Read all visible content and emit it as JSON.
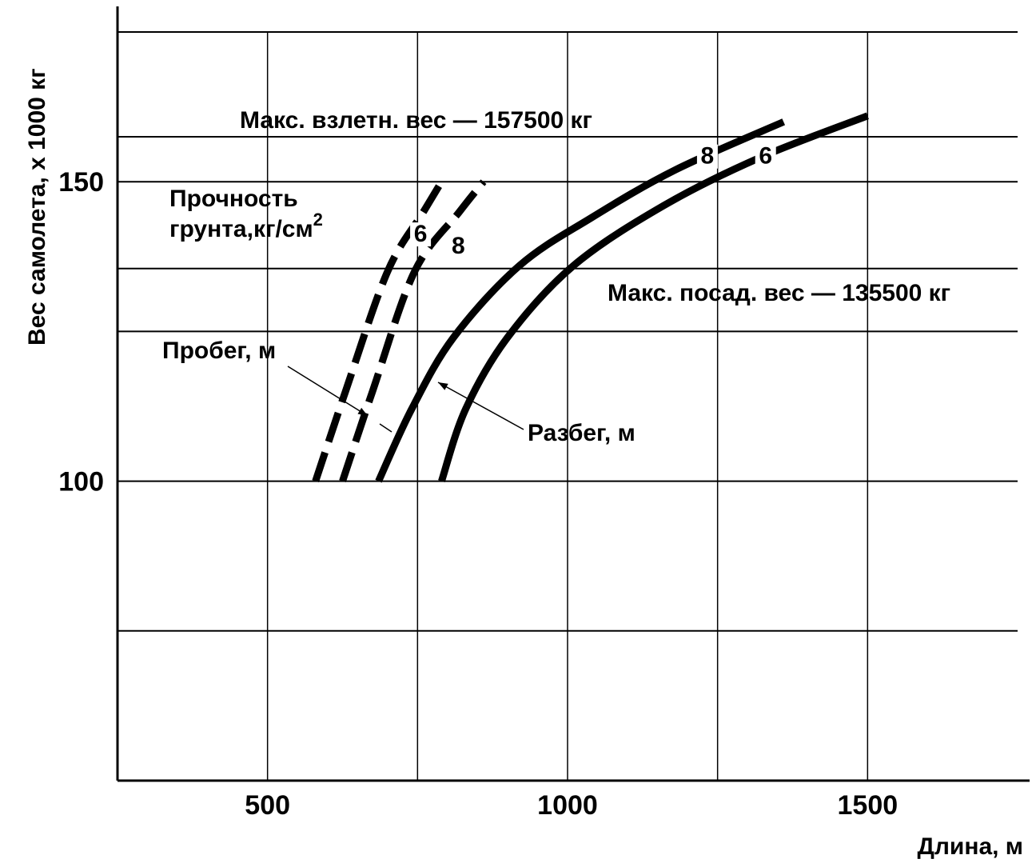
{
  "chart_data": {
    "type": "line",
    "xlabel": "Длина, м",
    "ylabel": "Вес самолета, х 1000 кг",
    "xlim": [
      250,
      1750
    ],
    "ylim": [
      50,
      175
    ],
    "x_ticks": [
      500,
      1000,
      1500
    ],
    "y_ticks": [
      100,
      150
    ],
    "x_gridlines": [
      500,
      750,
      1000,
      1250,
      1500,
      1750
    ],
    "y_gridlines": [
      75,
      100,
      125,
      135.5,
      150,
      157.5,
      175
    ],
    "grid": true,
    "annotations": {
      "max_takeoff": "Макс. взлетн. вес — 157500 кг",
      "max_landing": "Макс. посад. вес — 135500 кг",
      "soil_strength_line1": "Прочность",
      "soil_strength_line2": "грунта,кг/см",
      "soil_strength_sup": "2",
      "landing_run": "Пробег, м",
      "takeoff_run": "Разбег, м"
    },
    "series": [
      {
        "name": "6",
        "group": "Пробег",
        "style": "dashed",
        "x": [
          580,
          630,
          700,
          760,
          790
        ],
        "y": [
          100,
          115,
          135,
          145,
          150
        ]
      },
      {
        "name": "8",
        "group": "Пробег",
        "style": "dashed",
        "x": [
          625,
          675,
          745,
          820,
          860
        ],
        "y": [
          100,
          115,
          135,
          145,
          150
        ]
      },
      {
        "name": "8",
        "group": "Разбег",
        "style": "solid",
        "x": [
          685,
          740,
          810,
          920,
          1040,
          1180,
          1360
        ],
        "y": [
          100,
          112,
          124,
          136,
          144,
          152,
          160
        ]
      },
      {
        "name": "6",
        "group": "Разбег",
        "style": "solid",
        "x": [
          790,
          830,
          900,
          1010,
          1160,
          1320,
          1500
        ],
        "y": [
          100,
          112,
          124,
          136,
          146,
          154,
          161
        ]
      }
    ],
    "curve_labels": [
      {
        "text": "6",
        "x": 755,
        "y": 140
      },
      {
        "text": "8",
        "x": 818,
        "y": 138
      },
      {
        "text": "8",
        "x": 1233,
        "y": 153
      },
      {
        "text": "6",
        "x": 1330,
        "y": 153
      }
    ]
  }
}
